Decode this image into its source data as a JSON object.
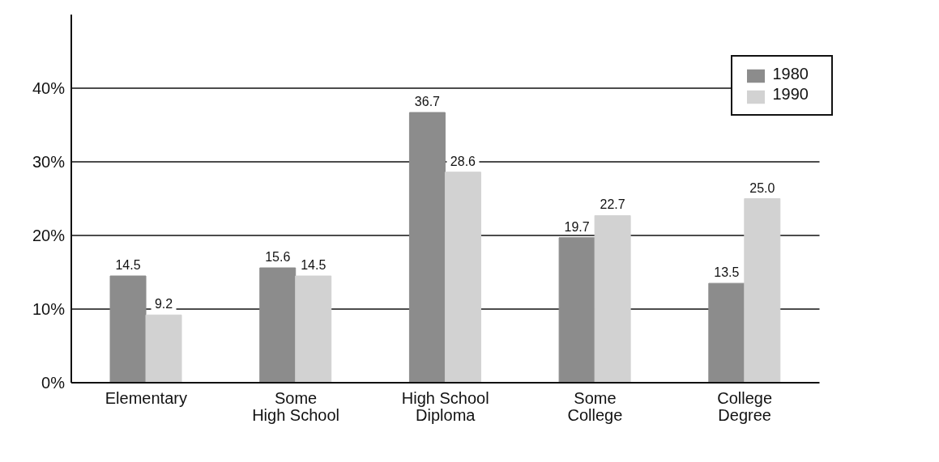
{
  "chart_data": {
    "type": "bar",
    "categories": [
      "Elementary",
      "Some\nHigh School",
      "High School\nDiploma",
      "Some\nCollege",
      "College\nDegree"
    ],
    "series": [
      {
        "name": "1980",
        "color": "#8c8c8c",
        "values": [
          14.5,
          15.6,
          36.7,
          19.7,
          13.5
        ],
        "value_labels": [
          "14.5",
          "15.6",
          "36.7",
          "19.7",
          "13.5"
        ]
      },
      {
        "name": "1990",
        "color": "#d2d2d2",
        "values": [
          9.2,
          14.5,
          28.6,
          22.7,
          25.0
        ],
        "value_labels": [
          "9.2",
          "14.5",
          "28.6",
          "22.7",
          "25.0"
        ]
      }
    ],
    "ylim": [
      0,
      50
    ],
    "yticks": [
      {
        "value": 0,
        "label": "0%"
      },
      {
        "value": 10,
        "label": "10%"
      },
      {
        "value": 20,
        "label": "20%"
      },
      {
        "value": 30,
        "label": "30%"
      },
      {
        "value": 40,
        "label": "40%"
      }
    ],
    "grid": "y",
    "legend": "top right"
  }
}
